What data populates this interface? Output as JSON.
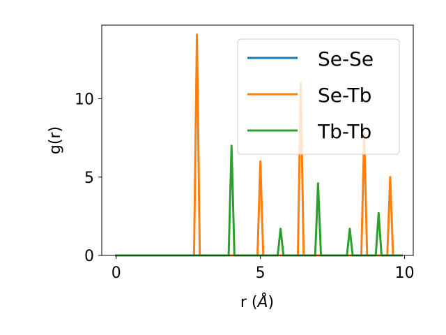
{
  "chart_data": {
    "type": "line",
    "title": "",
    "xlabel_main": "r (",
    "xlabel_unit": "Å",
    "xlabel_close": ")",
    "ylabel": "g(r)",
    "xlim": [
      -0.5,
      10.3
    ],
    "ylim": [
      0,
      14.7
    ],
    "xticks": [
      0,
      5,
      10
    ],
    "yticks": [
      0,
      5,
      10
    ],
    "legend_position": "upper right",
    "series": [
      {
        "name": "Se-Se",
        "color": "#1f77b4",
        "x": [
          0,
          9.9
        ],
        "y": [
          0,
          0
        ]
      },
      {
        "name": "Se-Tb",
        "color": "#ff7f0e",
        "x": [
          0,
          2.7,
          2.8,
          2.9,
          4.9,
          5.0,
          5.1,
          6.3,
          6.4,
          6.5,
          8.5,
          8.6,
          8.7,
          9.4,
          9.5,
          9.6,
          9.9
        ],
        "y": [
          0,
          0,
          14.1,
          0,
          0,
          6.0,
          0,
          0,
          11.0,
          0,
          0,
          7.8,
          0,
          0,
          5.0,
          0,
          0
        ]
      },
      {
        "name": "Tb-Tb",
        "color": "#2ca02c",
        "x": [
          0,
          3.9,
          4.0,
          4.1,
          5.6,
          5.7,
          5.8,
          6.9,
          7.0,
          7.1,
          8.0,
          8.1,
          8.2,
          9.0,
          9.1,
          9.2,
          9.9
        ],
        "y": [
          0,
          0,
          7.0,
          0,
          0,
          1.7,
          0,
          0,
          4.6,
          0,
          0,
          1.7,
          0,
          0,
          2.7,
          0,
          0
        ]
      }
    ]
  }
}
